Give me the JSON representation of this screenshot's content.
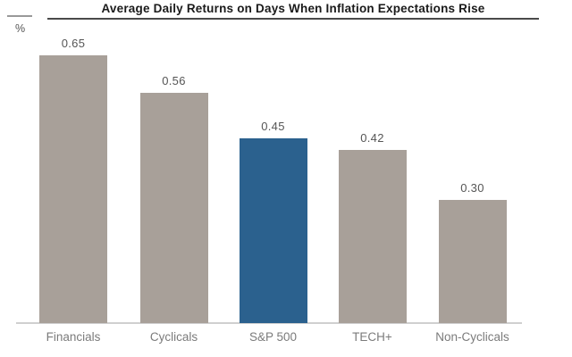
{
  "title": "Average Daily Returns on Days When Inflation Expectations Rise",
  "unit_label": "%",
  "chart_data": {
    "type": "bar",
    "title": "Average Daily Returns on Days When Inflation Expectations Rise",
    "ylabel": "%",
    "xlabel": "",
    "categories": [
      "Financials",
      "Cyclicals",
      "S&P 500",
      "TECH+",
      "Non-Cyclicals"
    ],
    "values": [
      0.65,
      0.56,
      0.45,
      0.42,
      0.3
    ],
    "value_labels": [
      "0.65",
      "0.56",
      "0.45",
      "0.42",
      "0.30"
    ],
    "ylim": [
      0,
      0.78
    ],
    "grid": false,
    "legend": null,
    "highlight_index": 2,
    "highlight_category": "S&P 500",
    "colors": {
      "bar_default": "#A8A099",
      "bar_highlight": "#2B618E",
      "axis_line": "#CFCFCF",
      "title_rule": "#4A4A4A",
      "title_text": "#1A1A1A",
      "value_label": "#555555",
      "category_label": "#7B7B7B",
      "unit_dash": "#999999"
    }
  }
}
